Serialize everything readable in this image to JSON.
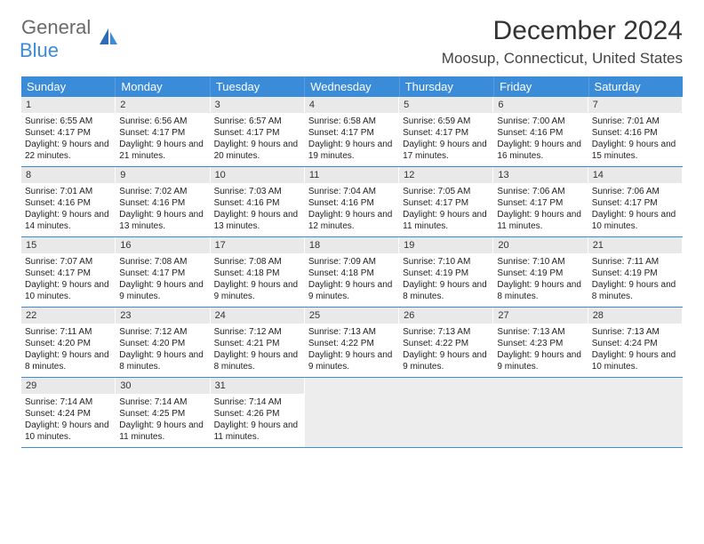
{
  "logo": {
    "word1": "General",
    "word2": "Blue"
  },
  "title": "December 2024",
  "location": "Moosup, Connecticut, United States",
  "weekdays": [
    "Sunday",
    "Monday",
    "Tuesday",
    "Wednesday",
    "Thursday",
    "Friday",
    "Saturday"
  ],
  "header_color": "#3a8bd8",
  "rule_color": "#3a8bd8",
  "numbar_color": "#e9e9e9",
  "empty_color": "#ededed",
  "weeks": [
    [
      {
        "n": "1",
        "sr": "6:55 AM",
        "ss": "4:17 PM",
        "dl": "9 hours and 22 minutes."
      },
      {
        "n": "2",
        "sr": "6:56 AM",
        "ss": "4:17 PM",
        "dl": "9 hours and 21 minutes."
      },
      {
        "n": "3",
        "sr": "6:57 AM",
        "ss": "4:17 PM",
        "dl": "9 hours and 20 minutes."
      },
      {
        "n": "4",
        "sr": "6:58 AM",
        "ss": "4:17 PM",
        "dl": "9 hours and 19 minutes."
      },
      {
        "n": "5",
        "sr": "6:59 AM",
        "ss": "4:17 PM",
        "dl": "9 hours and 17 minutes."
      },
      {
        "n": "6",
        "sr": "7:00 AM",
        "ss": "4:16 PM",
        "dl": "9 hours and 16 minutes."
      },
      {
        "n": "7",
        "sr": "7:01 AM",
        "ss": "4:16 PM",
        "dl": "9 hours and 15 minutes."
      }
    ],
    [
      {
        "n": "8",
        "sr": "7:01 AM",
        "ss": "4:16 PM",
        "dl": "9 hours and 14 minutes."
      },
      {
        "n": "9",
        "sr": "7:02 AM",
        "ss": "4:16 PM",
        "dl": "9 hours and 13 minutes."
      },
      {
        "n": "10",
        "sr": "7:03 AM",
        "ss": "4:16 PM",
        "dl": "9 hours and 13 minutes."
      },
      {
        "n": "11",
        "sr": "7:04 AM",
        "ss": "4:16 PM",
        "dl": "9 hours and 12 minutes."
      },
      {
        "n": "12",
        "sr": "7:05 AM",
        "ss": "4:17 PM",
        "dl": "9 hours and 11 minutes."
      },
      {
        "n": "13",
        "sr": "7:06 AM",
        "ss": "4:17 PM",
        "dl": "9 hours and 11 minutes."
      },
      {
        "n": "14",
        "sr": "7:06 AM",
        "ss": "4:17 PM",
        "dl": "9 hours and 10 minutes."
      }
    ],
    [
      {
        "n": "15",
        "sr": "7:07 AM",
        "ss": "4:17 PM",
        "dl": "9 hours and 10 minutes."
      },
      {
        "n": "16",
        "sr": "7:08 AM",
        "ss": "4:17 PM",
        "dl": "9 hours and 9 minutes."
      },
      {
        "n": "17",
        "sr": "7:08 AM",
        "ss": "4:18 PM",
        "dl": "9 hours and 9 minutes."
      },
      {
        "n": "18",
        "sr": "7:09 AM",
        "ss": "4:18 PM",
        "dl": "9 hours and 9 minutes."
      },
      {
        "n": "19",
        "sr": "7:10 AM",
        "ss": "4:19 PM",
        "dl": "9 hours and 8 minutes."
      },
      {
        "n": "20",
        "sr": "7:10 AM",
        "ss": "4:19 PM",
        "dl": "9 hours and 8 minutes."
      },
      {
        "n": "21",
        "sr": "7:11 AM",
        "ss": "4:19 PM",
        "dl": "9 hours and 8 minutes."
      }
    ],
    [
      {
        "n": "22",
        "sr": "7:11 AM",
        "ss": "4:20 PM",
        "dl": "9 hours and 8 minutes."
      },
      {
        "n": "23",
        "sr": "7:12 AM",
        "ss": "4:20 PM",
        "dl": "9 hours and 8 minutes."
      },
      {
        "n": "24",
        "sr": "7:12 AM",
        "ss": "4:21 PM",
        "dl": "9 hours and 8 minutes."
      },
      {
        "n": "25",
        "sr": "7:13 AM",
        "ss": "4:22 PM",
        "dl": "9 hours and 9 minutes."
      },
      {
        "n": "26",
        "sr": "7:13 AM",
        "ss": "4:22 PM",
        "dl": "9 hours and 9 minutes."
      },
      {
        "n": "27",
        "sr": "7:13 AM",
        "ss": "4:23 PM",
        "dl": "9 hours and 9 minutes."
      },
      {
        "n": "28",
        "sr": "7:13 AM",
        "ss": "4:24 PM",
        "dl": "9 hours and 10 minutes."
      }
    ],
    [
      {
        "n": "29",
        "sr": "7:14 AM",
        "ss": "4:24 PM",
        "dl": "9 hours and 10 minutes."
      },
      {
        "n": "30",
        "sr": "7:14 AM",
        "ss": "4:25 PM",
        "dl": "9 hours and 11 minutes."
      },
      {
        "n": "31",
        "sr": "7:14 AM",
        "ss": "4:26 PM",
        "dl": "9 hours and 11 minutes."
      },
      null,
      null,
      null,
      null
    ]
  ],
  "labels": {
    "sunrise": "Sunrise:",
    "sunset": "Sunset:",
    "daylight": "Daylight:"
  }
}
